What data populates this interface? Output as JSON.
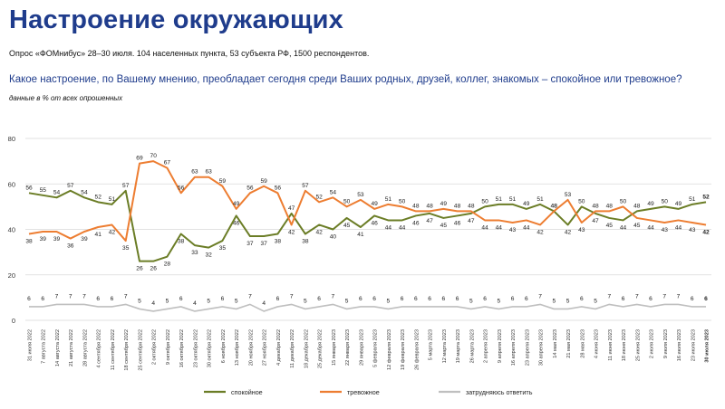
{
  "header": {
    "title": "Настроение окружающих",
    "subtitle": "Опрос «ФОМнибус» 28–30 июля. 104 населенных пункта, 53 субъекта РФ, 1500 респондентов.",
    "question": "Какое настроение, по Вашему мнению, преобладает сегодня среди Ваших родных, друзей, коллег, знакомых – спокойное или тревожное?",
    "note": "данные в % от всех опрошенных"
  },
  "colors": {
    "calm": "#6b7d26",
    "anxious": "#ed7d31",
    "unsure": "#bfbfbf",
    "title": "#1f3c8c",
    "grid": "#d9d9d9"
  },
  "chart_data": {
    "type": "line",
    "x": [
      "31 июля 2022",
      "7 августа 2022",
      "14 августа 2022",
      "21 августа 2022",
      "28 августа 2022",
      "4 сентября 2022",
      "11 сентября 2022",
      "18 сентября 2022",
      "25 сентября 2022",
      "2 октября 2022",
      "9 октября 2022",
      "16 октября 2022",
      "23 октября 2022",
      "30 октября 2022",
      "6 ноября 2022",
      "13 ноября 2022",
      "20 ноября 2022",
      "27 ноября 2022",
      "4 декабря 2022",
      "11 декабря 2022",
      "18 декабря 2022",
      "25 декабря 2022",
      "15 января 2023",
      "22 января 2023",
      "29 января 2023",
      "5 февраля 2023",
      "12 февраля 2023",
      "19 февраля 2023",
      "26 февраля 2023",
      "5 марта 2023",
      "12 марта 2023",
      "19 марта 2023",
      "26 марта 2023",
      "2 апреля 2023",
      "9 апреля 2023",
      "16 апреля 2023",
      "23 апреля 2023",
      "30 апреля 2023",
      "14 мая 2023",
      "21 мая 2023",
      "28 мая 2023",
      "4 июня 2023",
      "11 июня 2023",
      "18 июня 2023",
      "25 июня 2023",
      "2 июля 2023",
      "9 июля 2023",
      "16 июля 2023",
      "23 июля 2023",
      "30 июля 2023"
    ],
    "series": [
      {
        "name": "спокойное",
        "color": "#6b7d26",
        "values": [
          56,
          55,
          54,
          57,
          54,
          52,
          51,
          57,
          26,
          26,
          28,
          38,
          33,
          32,
          35,
          46,
          37,
          37,
          38,
          47,
          38,
          42,
          40,
          45,
          41,
          46,
          44,
          44,
          46,
          47,
          45,
          46,
          47,
          50,
          51,
          51,
          49,
          51,
          48,
          42,
          50,
          47,
          45,
          44,
          48,
          49,
          50,
          49,
          51,
          52
        ]
      },
      {
        "name": "тревожное",
        "color": "#ed7d31",
        "values": [
          38,
          39,
          39,
          36,
          39,
          41,
          42,
          35,
          69,
          70,
          67,
          56,
          63,
          63,
          59,
          49,
          56,
          59,
          56,
          42,
          57,
          52,
          54,
          50,
          53,
          49,
          51,
          50,
          48,
          48,
          49,
          48,
          48,
          44,
          44,
          43,
          44,
          42,
          48,
          53,
          43,
          48,
          48,
          50,
          45,
          44,
          43,
          44,
          43,
          42
        ]
      },
      {
        "name": "затрудняюсь ответить",
        "color": "#bfbfbf",
        "values": [
          6,
          6,
          7,
          7,
          7,
          6,
          6,
          7,
          5,
          4,
          5,
          6,
          4,
          5,
          6,
          5,
          7,
          4,
          6,
          7,
          5,
          6,
          7,
          5,
          6,
          6,
          5,
          6,
          6,
          6,
          6,
          6,
          5,
          6,
          5,
          6,
          6,
          7,
          5,
          5,
          6,
          5,
          7,
          6,
          7,
          6,
          7,
          7,
          6,
          6
        ]
      }
    ],
    "yticks": [
      0,
      20,
      40,
      60,
      80
    ],
    "ylim": [
      0,
      80
    ],
    "grid": true,
    "legend": "bottom"
  }
}
